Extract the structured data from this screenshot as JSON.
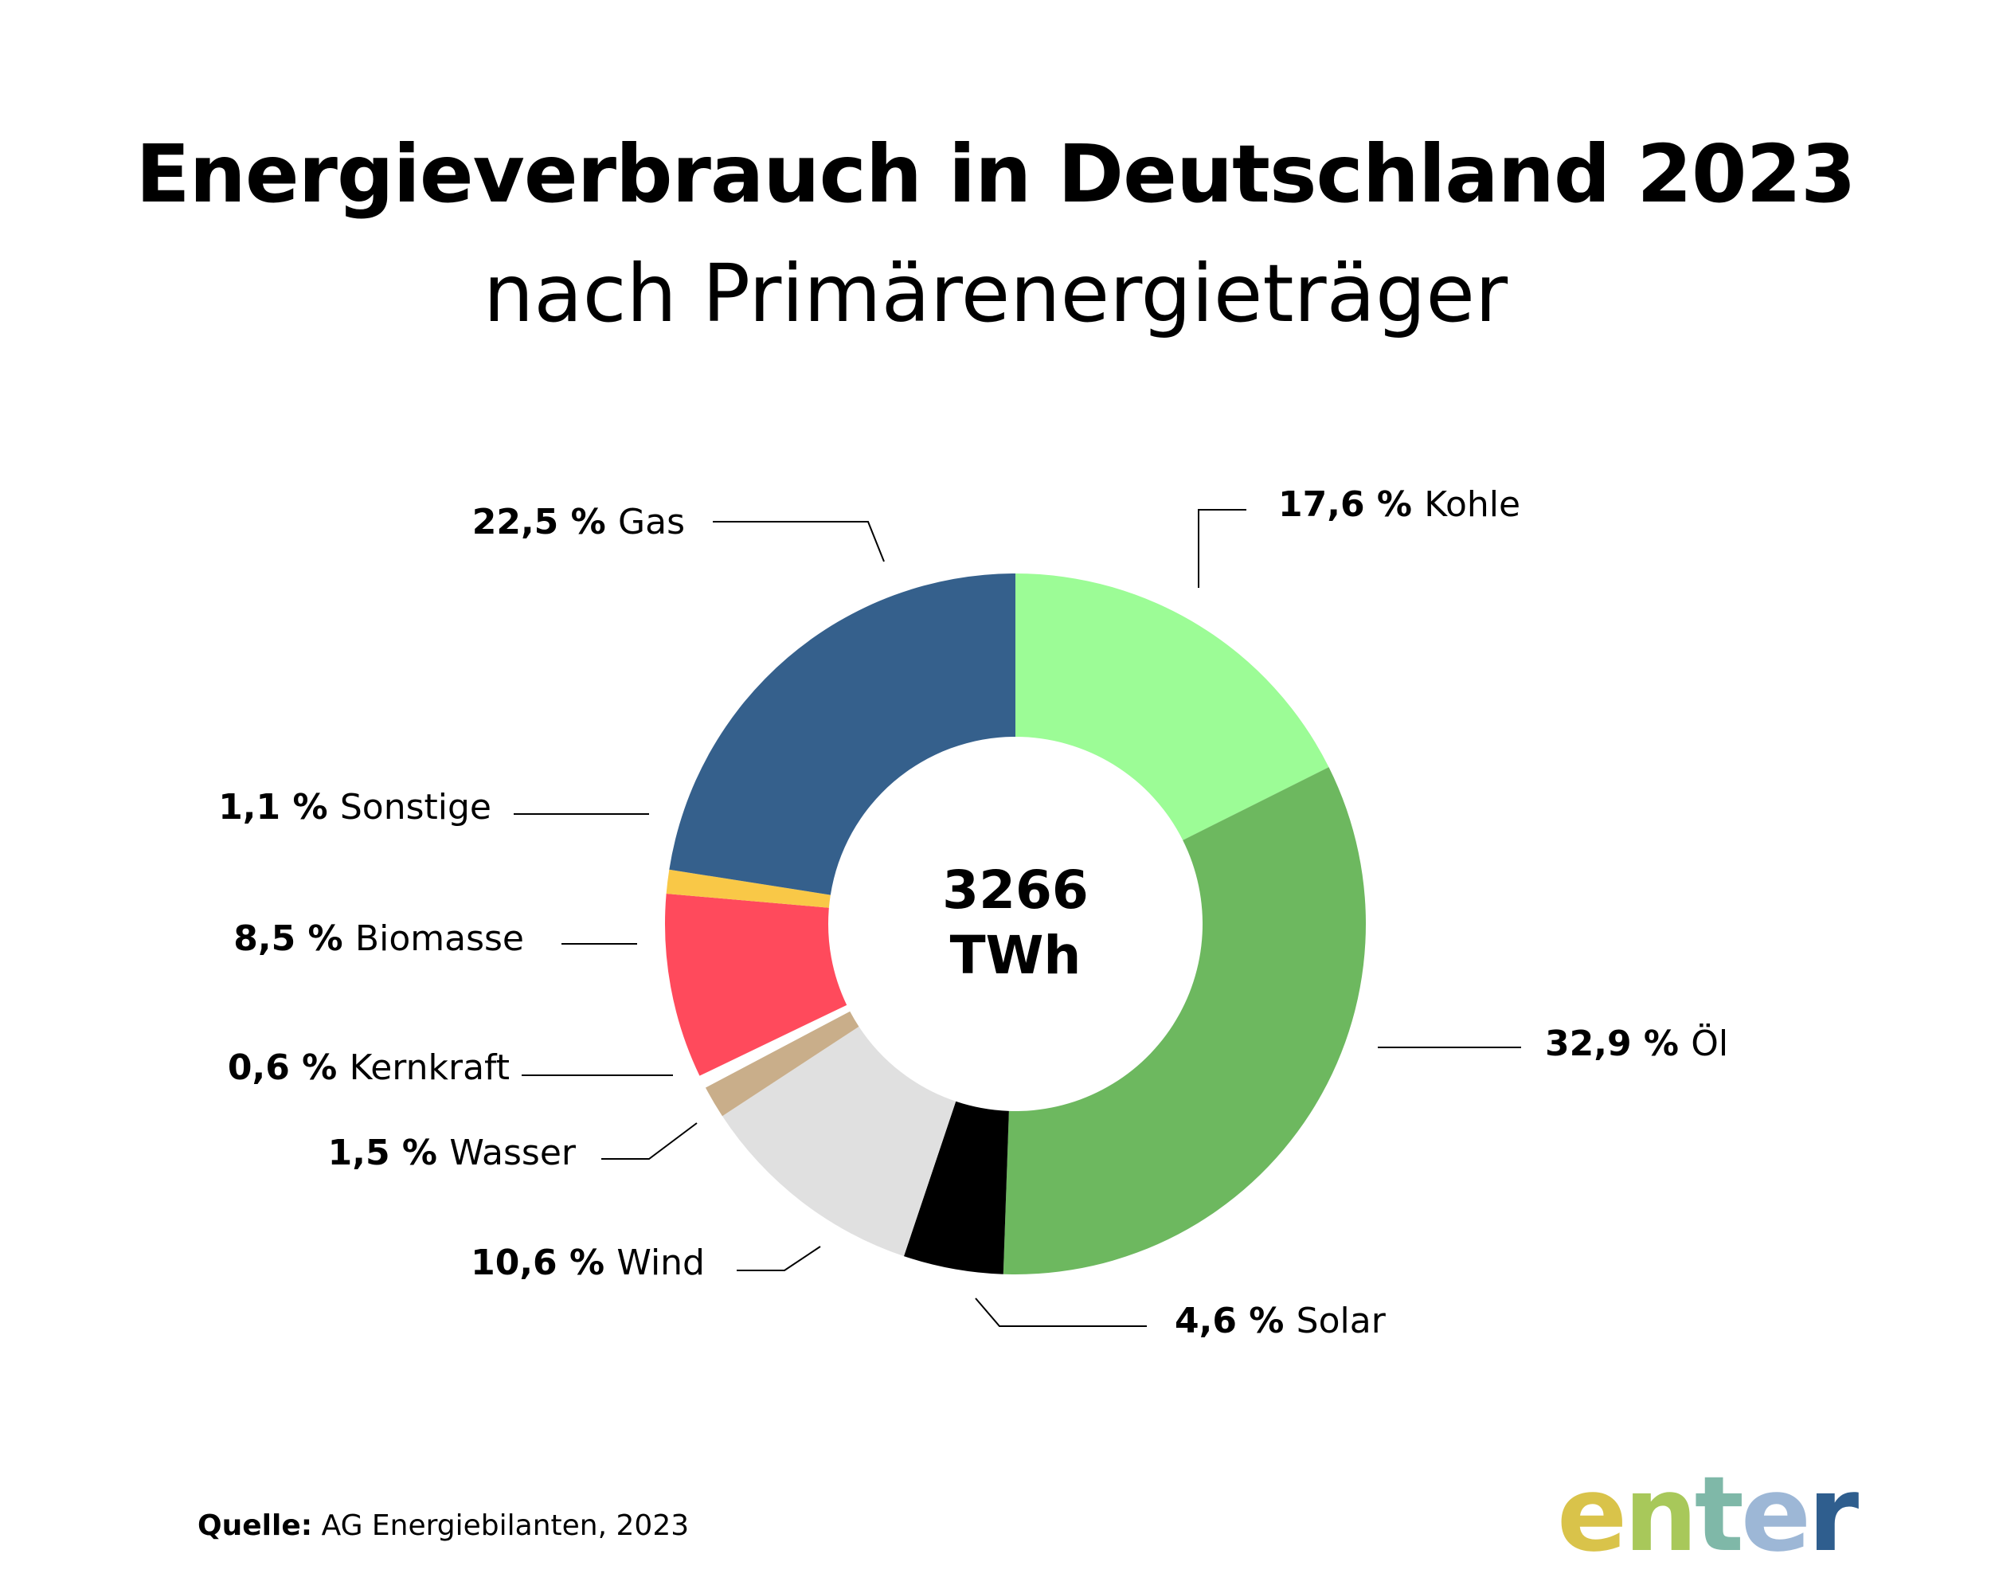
{
  "header": {
    "title": "Energieverbrauch in Deutschland 2023",
    "subtitle": "nach Primärenergieträger"
  },
  "center_label": {
    "value": "3266",
    "unit": "TWh"
  },
  "source": {
    "label": "Quelle:",
    "text": "AG Energiebilanten, 2023"
  },
  "logo": {
    "letters": [
      "e",
      "n",
      "t",
      "e",
      "r"
    ],
    "colors": [
      "#D9C34A",
      "#A8C85A",
      "#7FB8A8",
      "#9DB7D6",
      "#2F5E8E"
    ]
  },
  "chart_data": {
    "type": "pie",
    "donut": true,
    "title": "Energieverbrauch in Deutschland 2023",
    "subtitle": "nach Primärenergieträger",
    "total": "3266 TWh",
    "slices": [
      {
        "name": "Kohle",
        "value": 17.6,
        "label": "17,6 %",
        "color": "#9CFC96"
      },
      {
        "name": "Öl",
        "value": 32.9,
        "label": "32,9 %",
        "color": "#6DB85F"
      },
      {
        "name": "Solar",
        "value": 4.6,
        "label": "4,6 %",
        "color": "#000000"
      },
      {
        "name": "Wind",
        "value": 10.6,
        "label": "10,6 %",
        "color": "#E0E0E0"
      },
      {
        "name": "Wasser",
        "value": 1.5,
        "label": "1,5 %",
        "color": "#C9AE8A"
      },
      {
        "name": "Kernkraft",
        "value": 0.6,
        "label": "0,6 %",
        "color": "#FFFFFF"
      },
      {
        "name": "Biomasse",
        "value": 8.5,
        "label": "8,5 %",
        "color": "#FF4A5C"
      },
      {
        "name": "Sonstige",
        "value": 1.1,
        "label": "1,1 %",
        "color": "#F9C847"
      },
      {
        "name": "Gas",
        "value": 22.5,
        "label": "22,5 %",
        "color": "#35608C"
      }
    ]
  }
}
